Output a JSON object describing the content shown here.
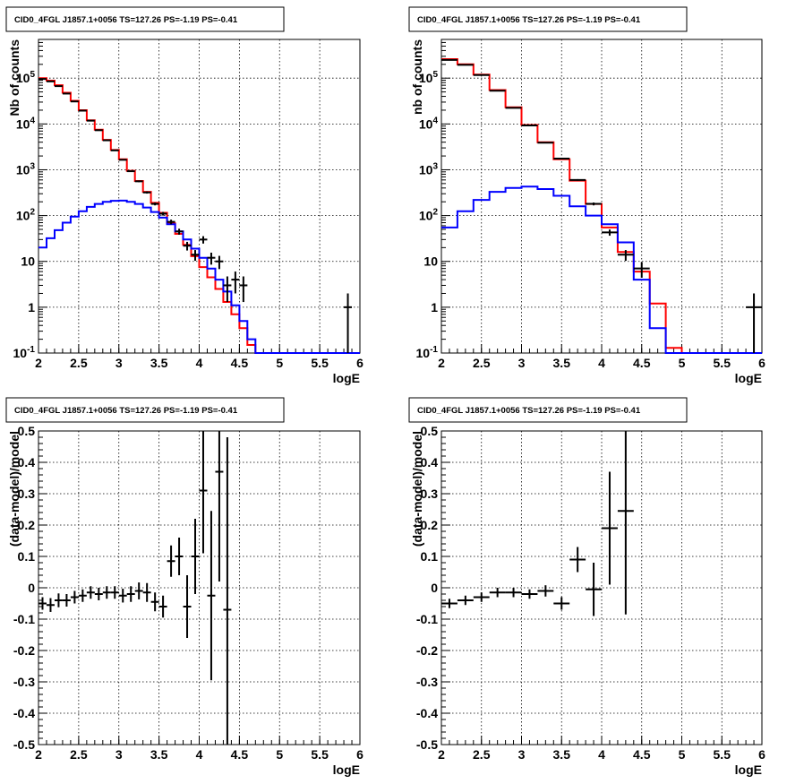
{
  "chart_data": [
    {
      "type": "line",
      "title": "CID0_4FGL J1857.1+0056 TS=127.26 PS=-1.19 PS=-0.41",
      "xlabel": "logE",
      "ylabel": "Nb of counts",
      "xlim": [
        2,
        6
      ],
      "ylim": [
        0.1,
        700000
      ],
      "yscale": "log",
      "grid": true,
      "x_ticks": [
        "2",
        "2.5",
        "3",
        "3.5",
        "4",
        "4.5",
        "5",
        "5.5",
        "6"
      ],
      "y_ticks": [
        "10^-1",
        "1",
        "10",
        "10^2",
        "10^3",
        "10^4",
        "10^5"
      ],
      "bin_edges": [
        2.0,
        2.1,
        2.2,
        2.3,
        2.4,
        2.5,
        2.6,
        2.7,
        2.8,
        2.9,
        3.0,
        3.1,
        3.2,
        3.3,
        3.4,
        3.5,
        3.6,
        3.7,
        3.8,
        3.9,
        4.0,
        4.1,
        4.2,
        4.3,
        4.4,
        4.5,
        4.6,
        4.7,
        4.8,
        4.9,
        5.0,
        5.1,
        5.2,
        5.3,
        5.4,
        5.5,
        5.6,
        5.7,
        5.8,
        5.9,
        6.0
      ],
      "series": [
        {
          "color": "#ff0000",
          "values": [
            100000,
            88000,
            70000,
            48000,
            32000,
            20000,
            12000,
            7500,
            4500,
            2700,
            1700,
            950,
            570,
            330,
            190,
            115,
            68,
            40,
            23,
            13,
            7.5,
            4.5,
            2.5,
            1.3,
            0.7,
            0.35,
            0.15,
            0.1,
            0.1,
            0.1,
            0.1,
            0.1,
            0.1,
            0.1,
            0.1,
            0.1,
            0.1,
            0.1,
            0.1,
            0.1
          ]
        },
        {
          "color": "#0000ff",
          "values": [
            20,
            32,
            48,
            70,
            95,
            125,
            155,
            180,
            200,
            210,
            212,
            200,
            180,
            150,
            120,
            90,
            65,
            45,
            30,
            19,
            12,
            7,
            4,
            2.2,
            1.1,
            0.5,
            0.2,
            0.1,
            0.1,
            0.1,
            0.1,
            0.1,
            0.1,
            0.1,
            0.1,
            0.1,
            0.1,
            0.1,
            0.1,
            0.1
          ]
        },
        {
          "color": "#000000",
          "style": "error-points",
          "points": [
            {
              "x": 2.05,
              "y": 96000,
              "err": 310
            },
            {
              "x": 2.15,
              "y": 85000,
              "err": 290
            },
            {
              "x": 2.25,
              "y": 67000,
              "err": 260
            },
            {
              "x": 2.35,
              "y": 46000,
              "err": 215
            },
            {
              "x": 2.45,
              "y": 31000,
              "err": 176
            },
            {
              "x": 2.55,
              "y": 19500,
              "err": 140
            },
            {
              "x": 2.65,
              "y": 11800,
              "err": 109
            },
            {
              "x": 2.75,
              "y": 7300,
              "err": 85
            },
            {
              "x": 2.85,
              "y": 4400,
              "err": 66
            },
            {
              "x": 2.95,
              "y": 2650,
              "err": 51
            },
            {
              "x": 3.05,
              "y": 1650,
              "err": 41
            },
            {
              "x": 3.15,
              "y": 930,
              "err": 30
            },
            {
              "x": 3.25,
              "y": 560,
              "err": 24
            },
            {
              "x": 3.35,
              "y": 320,
              "err": 18
            },
            {
              "x": 3.45,
              "y": 180,
              "err": 13
            },
            {
              "x": 3.55,
              "y": 110,
              "err": 10
            },
            {
              "x": 3.65,
              "y": 73,
              "err": 8.5
            },
            {
              "x": 3.75,
              "y": 45,
              "err": 6.7
            },
            {
              "x": 3.85,
              "y": 22,
              "err": 4.7
            },
            {
              "x": 3.95,
              "y": 14,
              "err": 3.7
            },
            {
              "x": 4.05,
              "y": 30,
              "err": 5.5
            },
            {
              "x": 4.15,
              "y": 12,
              "err": 3.5
            },
            {
              "x": 4.25,
              "y": 10,
              "err": 3.2
            },
            {
              "x": 4.35,
              "y": 3,
              "err": 1.7
            },
            {
              "x": 4.45,
              "y": 4,
              "err": 2
            },
            {
              "x": 4.55,
              "y": 3,
              "err": 1.7
            },
            {
              "x": 5.85,
              "y": 1,
              "err": 1
            }
          ]
        }
      ]
    },
    {
      "type": "line",
      "title": "CID0_4FGL J1857.1+0056 TS=127.26 PS=-1.19 PS=-0.41",
      "xlabel": "logE",
      "ylabel": "nb of counts",
      "xlim": [
        2,
        6
      ],
      "ylim": [
        0.1,
        700000
      ],
      "yscale": "log",
      "grid": true,
      "x_ticks": [
        "2",
        "2.5",
        "3",
        "3.5",
        "4",
        "4.5",
        "5",
        "5.5",
        "6"
      ],
      "y_ticks": [
        "10^-1",
        "1",
        "10",
        "10^2",
        "10^3",
        "10^4",
        "10^5"
      ],
      "bin_edges": [
        2.0,
        2.2,
        2.4,
        2.6,
        2.8,
        3.0,
        3.2,
        3.4,
        3.6,
        3.8,
        4.0,
        4.2,
        4.4,
        4.6,
        4.8,
        5.0,
        5.2,
        5.4,
        5.6,
        5.8,
        6.0
      ],
      "series": [
        {
          "color": "#ff0000",
          "values": [
            260000,
            200000,
            120000,
            55000,
            23000,
            9500,
            4000,
            1700,
            580,
            180,
            55,
            16,
            6,
            1.2,
            0.13,
            0.1,
            0.1,
            0.1,
            0.1,
            0.1
          ]
        },
        {
          "color": "#0000ff",
          "values": [
            55,
            125,
            220,
            330,
            400,
            430,
            380,
            270,
            160,
            100,
            65,
            26,
            4,
            0.35,
            0.1,
            0.1,
            0.1,
            0.1,
            0.1,
            0.1
          ]
        },
        {
          "color": "#000000",
          "style": "error-points",
          "points": [
            {
              "x": 2.1,
              "y": 250000,
              "err": 500
            },
            {
              "x": 2.3,
              "y": 195000,
              "err": 440
            },
            {
              "x": 2.5,
              "y": 117000,
              "err": 340
            },
            {
              "x": 2.7,
              "y": 53000,
              "err": 230
            },
            {
              "x": 2.9,
              "y": 22500,
              "err": 150
            },
            {
              "x": 3.1,
              "y": 9300,
              "err": 96
            },
            {
              "x": 3.3,
              "y": 3900,
              "err": 62
            },
            {
              "x": 3.5,
              "y": 1750,
              "err": 42
            },
            {
              "x": 3.7,
              "y": 600,
              "err": 24
            },
            {
              "x": 3.9,
              "y": 180,
              "err": 13
            },
            {
              "x": 4.1,
              "y": 43,
              "err": 6.6
            },
            {
              "x": 4.3,
              "y": 14,
              "err": 3.7
            },
            {
              "x": 4.5,
              "y": 7,
              "err": 2.6
            },
            {
              "x": 5.9,
              "y": 1,
              "err": 1
            }
          ]
        }
      ]
    },
    {
      "type": "scatter",
      "title": "CID0_4FGL J1857.1+0056 TS=127.26 PS=-1.19 PS=-0.41",
      "xlabel": "logE",
      "ylabel": "(data-model)/model",
      "xlim": [
        2,
        6
      ],
      "ylim": [
        -0.5,
        0.5
      ],
      "grid": true,
      "x_ticks": [
        "2",
        "2.5",
        "3",
        "3.5",
        "4",
        "4.5",
        "5",
        "5.5",
        "6"
      ],
      "y_ticks": [
        "-0.5",
        "-0.4",
        "-0.3",
        "-0.2",
        "-0.1",
        "0",
        "0.1",
        "0.2",
        "0.3",
        "0.4",
        "0.5"
      ],
      "series": [
        {
          "color": "#000000",
          "style": "error-points",
          "xerr": 0.05,
          "points": [
            {
              "x": 2.05,
              "y": -0.05,
              "err": 0.02
            },
            {
              "x": 2.15,
              "y": -0.055,
              "err": 0.022
            },
            {
              "x": 2.25,
              "y": -0.04,
              "err": 0.022
            },
            {
              "x": 2.35,
              "y": -0.04,
              "err": 0.02
            },
            {
              "x": 2.45,
              "y": -0.03,
              "err": 0.02
            },
            {
              "x": 2.55,
              "y": -0.025,
              "err": 0.02
            },
            {
              "x": 2.65,
              "y": -0.015,
              "err": 0.02
            },
            {
              "x": 2.75,
              "y": -0.02,
              "err": 0.02
            },
            {
              "x": 2.85,
              "y": -0.015,
              "err": 0.02
            },
            {
              "x": 2.95,
              "y": -0.015,
              "err": 0.02
            },
            {
              "x": 3.05,
              "y": -0.025,
              "err": 0.022
            },
            {
              "x": 3.15,
              "y": -0.02,
              "err": 0.025
            },
            {
              "x": 3.25,
              "y": -0.01,
              "err": 0.027
            },
            {
              "x": 3.35,
              "y": -0.015,
              "err": 0.03
            },
            {
              "x": 3.45,
              "y": -0.045,
              "err": 0.03
            },
            {
              "x": 3.55,
              "y": -0.06,
              "err": 0.035
            },
            {
              "x": 3.65,
              "y": 0.085,
              "err": 0.05
            },
            {
              "x": 3.75,
              "y": 0.1,
              "err": 0.06
            },
            {
              "x": 3.85,
              "y": -0.06,
              "err": 0.1
            },
            {
              "x": 3.95,
              "y": 0.1,
              "err": 0.12
            },
            {
              "x": 4.05,
              "y": 0.31,
              "err": 0.2
            },
            {
              "x": 4.15,
              "y": -0.025,
              "err": 0.27
            },
            {
              "x": 4.25,
              "y": 0.37,
              "err": 0.35
            },
            {
              "x": 4.35,
              "y": -0.07,
              "err": 0.55
            }
          ]
        }
      ]
    },
    {
      "type": "scatter",
      "title": "CID0_4FGL J1857.1+0056 TS=127.26 PS=-1.19 PS=-0.41",
      "xlabel": "logE",
      "ylabel": "(data-model)/model",
      "xlim": [
        2,
        6
      ],
      "ylim": [
        -0.5,
        0.5
      ],
      "grid": true,
      "x_ticks": [
        "2",
        "2.5",
        "3",
        "3.5",
        "4",
        "4.5",
        "5",
        "5.5",
        "6"
      ],
      "y_ticks": [
        "-0.5",
        "-0.4",
        "-0.3",
        "-0.2",
        "-0.1",
        "0",
        "0.1",
        "0.2",
        "0.3",
        "0.4",
        "0.5"
      ],
      "series": [
        {
          "color": "#000000",
          "style": "error-points",
          "xerr": 0.1,
          "points": [
            {
              "x": 2.1,
              "y": -0.05,
              "err": 0.015
            },
            {
              "x": 2.3,
              "y": -0.04,
              "err": 0.015
            },
            {
              "x": 2.5,
              "y": -0.03,
              "err": 0.015
            },
            {
              "x": 2.7,
              "y": -0.015,
              "err": 0.015
            },
            {
              "x": 2.9,
              "y": -0.015,
              "err": 0.015
            },
            {
              "x": 3.1,
              "y": -0.02,
              "err": 0.015
            },
            {
              "x": 3.3,
              "y": -0.01,
              "err": 0.018
            },
            {
              "x": 3.5,
              "y": -0.05,
              "err": 0.02
            },
            {
              "x": 3.7,
              "y": 0.09,
              "err": 0.04
            },
            {
              "x": 3.9,
              "y": -0.005,
              "err": 0.085
            },
            {
              "x": 4.1,
              "y": 0.19,
              "err": 0.18
            },
            {
              "x": 4.3,
              "y": 0.245,
              "err": 0.33
            }
          ]
        }
      ]
    }
  ]
}
